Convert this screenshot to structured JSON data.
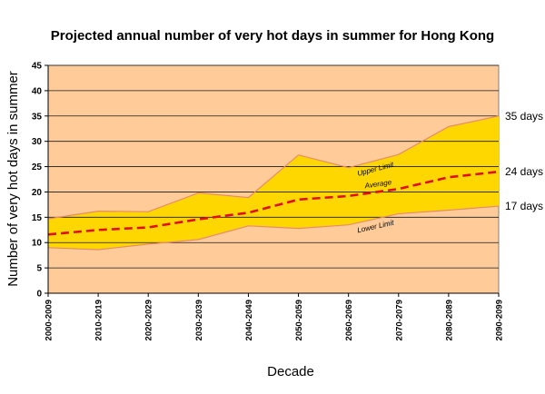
{
  "chart_data": {
    "type": "area",
    "title": "Projected annual number of very hot days in summer for Hong Kong",
    "xlabel": "Decade",
    "ylabel": "Number of very hot days in summer",
    "categories": [
      "2000-2009",
      "2010-2019",
      "2020-2029",
      "2030-2039",
      "2040-2049",
      "2050-2059",
      "2060-2069",
      "2070-2079",
      "2080-2089",
      "2090-2099"
    ],
    "ylim": [
      0,
      45
    ],
    "yticks": [
      "0",
      "5",
      "10",
      "15",
      "20",
      "25",
      "30",
      "35",
      "40",
      "45"
    ],
    "grid": true,
    "series": [
      {
        "name": "Upper Limit",
        "values": [
          14.7,
          16.2,
          16.1,
          19.8,
          18.9,
          27.3,
          24.8,
          27.4,
          32.9,
          35.0
        ]
      },
      {
        "name": "Average",
        "values": [
          11.6,
          12.5,
          13.0,
          14.6,
          15.9,
          18.5,
          19.2,
          20.6,
          22.9,
          24.0
        ]
      },
      {
        "name": "Lower Limit",
        "values": [
          9.0,
          8.6,
          9.7,
          10.6,
          13.3,
          12.8,
          13.5,
          15.7,
          16.4,
          17.2
        ]
      }
    ],
    "end_labels": [
      "35 days",
      "24 days",
      "17 days"
    ],
    "colors": {
      "plot_background": "#FFCC99",
      "band_fill": "#FFD700",
      "average_line": "#E0101A",
      "band_edge": "#E88A6A",
      "grid": "#1a1a1a"
    }
  }
}
